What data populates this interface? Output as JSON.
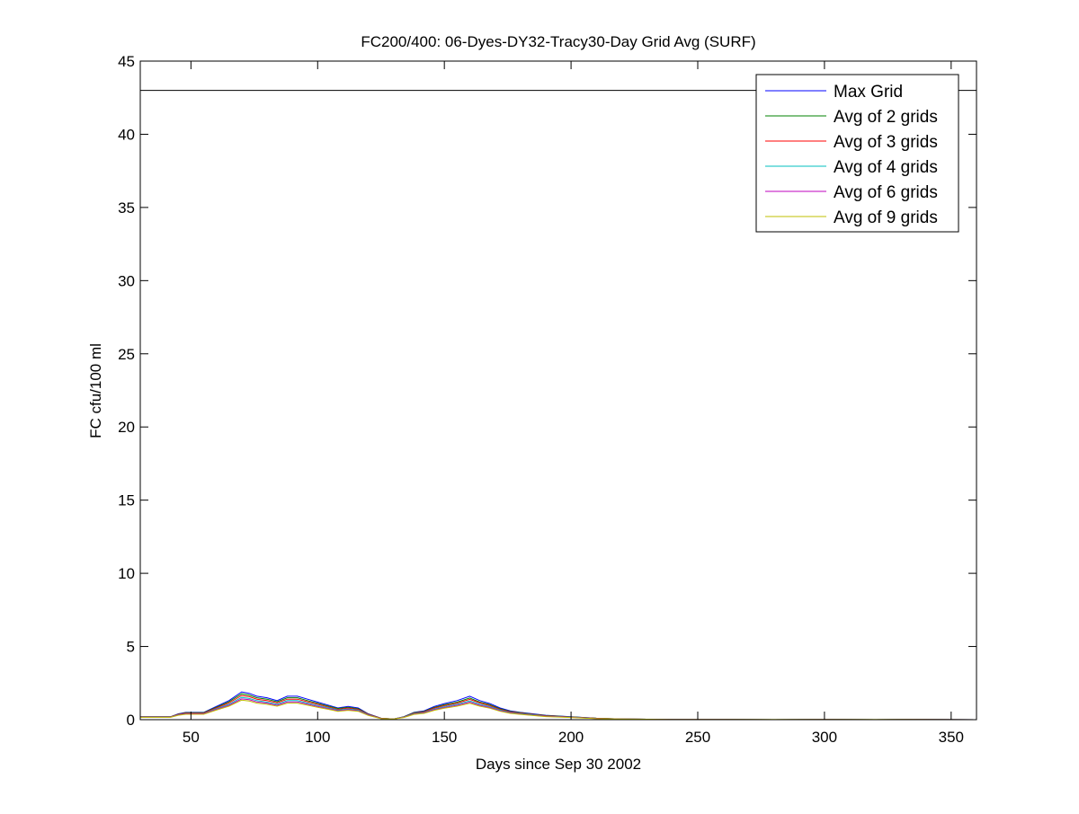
{
  "chart_data": {
    "type": "line",
    "title": "FC200/400: 06-Dyes-DY32-Tracy30-Day Grid Avg (SURF)",
    "xlabel": "Days since Sep 30 2002",
    "ylabel": "FC cfu/100 ml",
    "xlim": [
      30,
      360
    ],
    "ylim": [
      0,
      45
    ],
    "xticks": [
      50,
      100,
      150,
      200,
      250,
      300,
      350
    ],
    "yticks": [
      0,
      5,
      10,
      15,
      20,
      25,
      30,
      35,
      40,
      45
    ],
    "grid": false,
    "legend_position": "top-right",
    "reference_line": {
      "y": 43,
      "color": "#000000"
    },
    "x": [
      30,
      42,
      45,
      48,
      55,
      60,
      65,
      70,
      73,
      76,
      80,
      84,
      88,
      92,
      96,
      100,
      104,
      108,
      112,
      116,
      120,
      125,
      130,
      134,
      138,
      142,
      146,
      150,
      155,
      160,
      164,
      168,
      172,
      176,
      180,
      185,
      190,
      200,
      210,
      220,
      240,
      260,
      280,
      300,
      320,
      335,
      360
    ],
    "series": [
      {
        "name": "Max Grid",
        "color": "#0000ff",
        "values": [
          0.2,
          0.2,
          0.4,
          0.5,
          0.5,
          0.9,
          1.3,
          1.9,
          1.8,
          1.6,
          1.5,
          1.3,
          1.6,
          1.6,
          1.4,
          1.2,
          1.0,
          0.8,
          0.9,
          0.8,
          0.4,
          0.1,
          0.05,
          0.2,
          0.5,
          0.6,
          0.9,
          1.1,
          1.3,
          1.6,
          1.3,
          1.1,
          0.8,
          0.6,
          0.5,
          0.4,
          0.3,
          0.2,
          0.1,
          0.05,
          0.02,
          0.02,
          0,
          0.02,
          0,
          0.01,
          0
        ]
      },
      {
        "name": "Avg of 2 grids",
        "color": "#008000",
        "values": [
          0.2,
          0.2,
          0.38,
          0.48,
          0.48,
          0.85,
          1.22,
          1.77,
          1.68,
          1.5,
          1.4,
          1.22,
          1.5,
          1.5,
          1.3,
          1.12,
          0.94,
          0.76,
          0.85,
          0.75,
          0.38,
          0.1,
          0.05,
          0.19,
          0.47,
          0.56,
          0.84,
          1.02,
          1.2,
          1.48,
          1.2,
          1.02,
          0.75,
          0.56,
          0.47,
          0.37,
          0.28,
          0.19,
          0.1,
          0.05,
          0.02,
          0.02,
          0,
          0.02,
          0,
          0.01,
          0
        ]
      },
      {
        "name": "Avg of 3 grids",
        "color": "#ff0000",
        "values": [
          0.19,
          0.19,
          0.36,
          0.45,
          0.45,
          0.8,
          1.14,
          1.65,
          1.57,
          1.4,
          1.3,
          1.14,
          1.4,
          1.4,
          1.22,
          1.05,
          0.88,
          0.7,
          0.79,
          0.7,
          0.36,
          0.09,
          0.05,
          0.18,
          0.44,
          0.53,
          0.79,
          0.96,
          1.13,
          1.39,
          1.14,
          0.96,
          0.7,
          0.53,
          0.44,
          0.35,
          0.26,
          0.18,
          0.09,
          0.04,
          0.02,
          0.02,
          0,
          0.02,
          0,
          0.01,
          0
        ]
      },
      {
        "name": "Avg of 4 grids",
        "color": "#00bfbf",
        "values": [
          0.18,
          0.18,
          0.34,
          0.42,
          0.42,
          0.74,
          1.05,
          1.52,
          1.45,
          1.3,
          1.2,
          1.05,
          1.3,
          1.3,
          1.13,
          0.97,
          0.82,
          0.65,
          0.73,
          0.65,
          0.33,
          0.08,
          0.04,
          0.17,
          0.41,
          0.49,
          0.73,
          0.89,
          1.05,
          1.28,
          1.05,
          0.89,
          0.65,
          0.49,
          0.41,
          0.33,
          0.24,
          0.17,
          0.08,
          0.04,
          0.02,
          0.02,
          0,
          0.02,
          0,
          0.01,
          0
        ]
      },
      {
        "name": "Avg of 6 grids",
        "color": "#bf00bf",
        "values": [
          0.17,
          0.17,
          0.32,
          0.4,
          0.4,
          0.7,
          0.98,
          1.42,
          1.36,
          1.21,
          1.13,
          0.98,
          1.21,
          1.21,
          1.06,
          0.91,
          0.76,
          0.61,
          0.68,
          0.61,
          0.31,
          0.08,
          0.04,
          0.16,
          0.38,
          0.46,
          0.68,
          0.83,
          0.98,
          1.2,
          0.98,
          0.83,
          0.61,
          0.46,
          0.38,
          0.3,
          0.23,
          0.16,
          0.08,
          0.04,
          0.02,
          0.02,
          0,
          0.02,
          0,
          0.01,
          0
        ]
      },
      {
        "name": "Avg of 9 grids",
        "color": "#bfbf00",
        "values": [
          0.16,
          0.16,
          0.3,
          0.37,
          0.37,
          0.65,
          0.92,
          1.33,
          1.27,
          1.13,
          1.05,
          0.92,
          1.13,
          1.13,
          0.99,
          0.85,
          0.71,
          0.57,
          0.64,
          0.57,
          0.29,
          0.07,
          0.04,
          0.15,
          0.36,
          0.43,
          0.64,
          0.78,
          0.92,
          1.12,
          0.92,
          0.78,
          0.57,
          0.43,
          0.36,
          0.28,
          0.21,
          0.15,
          0.07,
          0.04,
          0.02,
          0.02,
          0.01,
          0.02,
          0.01,
          0.01,
          0
        ]
      }
    ]
  }
}
